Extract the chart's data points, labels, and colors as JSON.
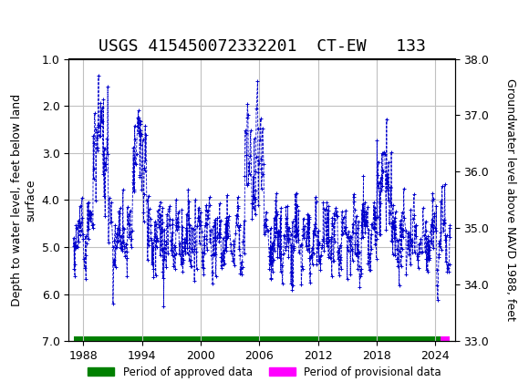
{
  "title": "USGS 415450072332201  CT-EW   133",
  "ylabel_left": "Depth to water level, feet below land\nsurface",
  "ylabel_right": "Groundwater level above NAVD 1988, feet",
  "ylim_left": [
    7.0,
    1.0
  ],
  "ylim_right": [
    33.0,
    38.0
  ],
  "yticks_left": [
    1.0,
    2.0,
    3.0,
    4.0,
    5.0,
    6.0,
    7.0
  ],
  "yticks_right": [
    33.0,
    34.0,
    35.0,
    36.0,
    37.0,
    38.0
  ],
  "xlim": [
    1986.5,
    2026.0
  ],
  "xticks": [
    1988,
    1994,
    2000,
    2006,
    2012,
    2018,
    2024
  ],
  "header_color": "#006940",
  "header_text": "USGS",
  "data_color": "#0000CC",
  "approved_color": "#008000",
  "provisional_color": "#FF00FF",
  "legend_approved": "Period of approved data",
  "legend_provisional": "Period of provisional data",
  "background_color": "#ffffff",
  "grid_color": "#c0c0c0",
  "title_fontsize": 13,
  "axis_fontsize": 9,
  "tick_fontsize": 9,
  "bar_y": 7.0,
  "approved_xstart": 1987.0,
  "approved_xend": 2024.5,
  "provisional_xstart": 2024.5,
  "provisional_xend": 2025.5
}
